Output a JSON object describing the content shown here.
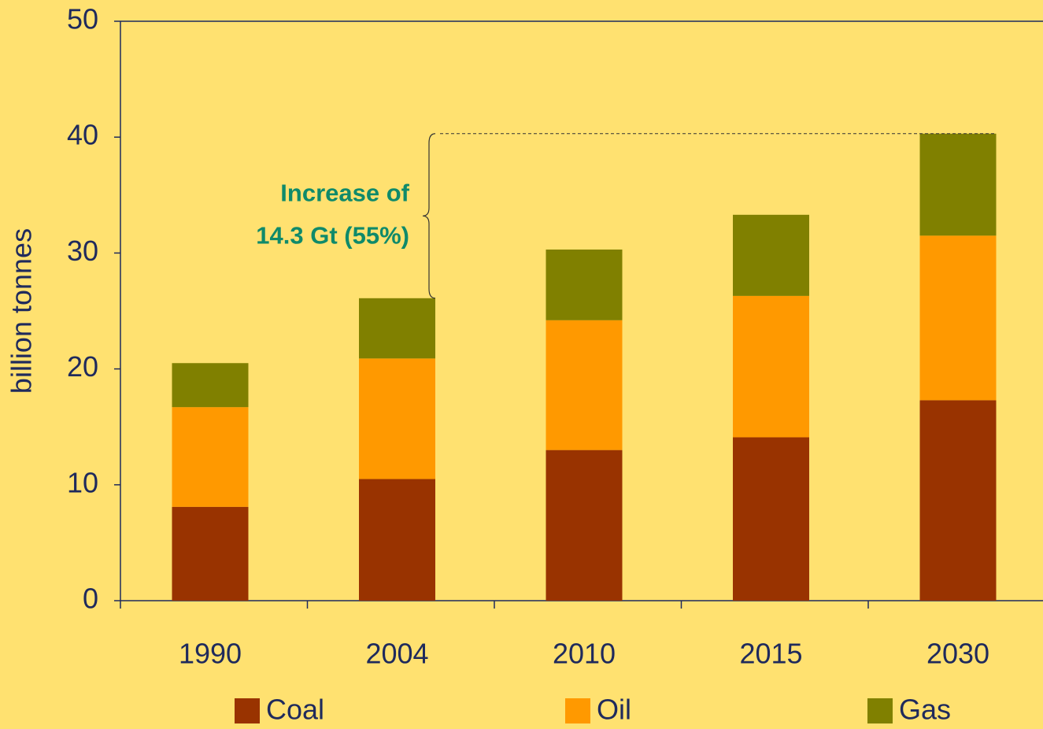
{
  "chart_data": {
    "type": "stacked_bar",
    "y_label": "billion tonnes",
    "categories": [
      "1990",
      "2004",
      "2010",
      "2015",
      "2030"
    ],
    "series": [
      {
        "name": "Coal",
        "color": "#993300",
        "values": [
          8.1,
          10.5,
          13.0,
          14.1,
          17.3
        ]
      },
      {
        "name": "Oil",
        "color": "#ff9900",
        "values": [
          8.6,
          10.4,
          11.2,
          12.2,
          14.2
        ]
      },
      {
        "name": "Gas",
        "color": "#808000",
        "values": [
          3.8,
          5.2,
          6.1,
          7.0,
          8.8
        ]
      }
    ],
    "annotations": [
      "Increase of",
      "14.3 Gt (55%)"
    ],
    "ylim": [
      0,
      50
    ],
    "yticks": [
      0,
      10,
      20,
      30,
      40,
      50
    ],
    "grid": false,
    "legend": "bottom"
  }
}
